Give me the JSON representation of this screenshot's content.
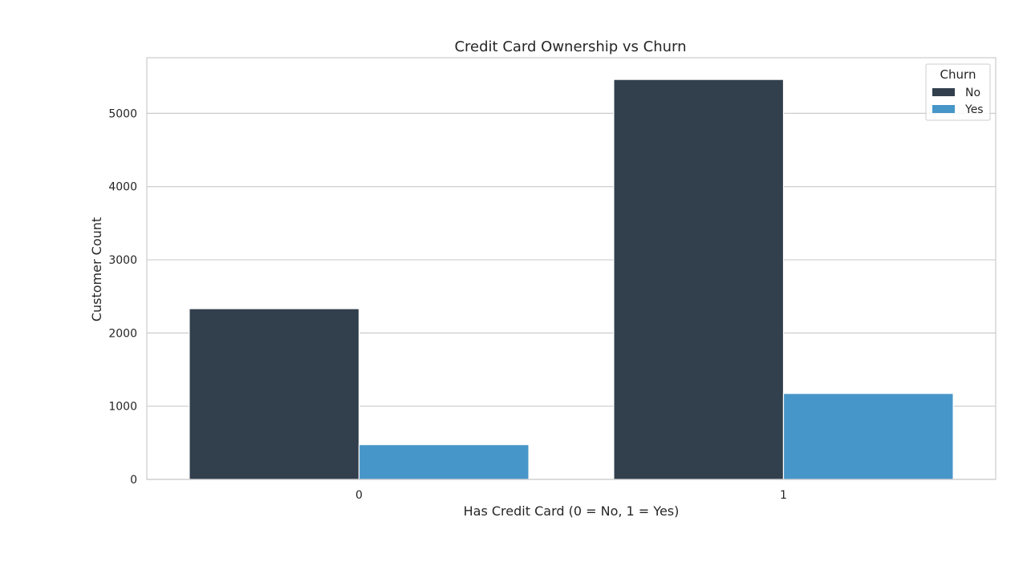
{
  "chart_data": {
    "type": "bar",
    "title": "Credit Card Ownership vs Churn",
    "xlabel": "Has Credit Card (0 = No, 1 = Yes)",
    "ylabel": "Customer Count",
    "categories": [
      "0",
      "1"
    ],
    "series": [
      {
        "name": "No",
        "values": [
          2332,
          5463
        ],
        "color": "#323f4d"
      },
      {
        "name": "Yes",
        "values": [
          475,
          1174
        ],
        "color": "#4796c9"
      }
    ],
    "ylim": [
      0,
      5760
    ],
    "yticks": [
      0,
      1000,
      2000,
      3000,
      4000,
      5000
    ],
    "grid": true,
    "legend": {
      "title": "Churn",
      "placement": "top-right"
    }
  }
}
